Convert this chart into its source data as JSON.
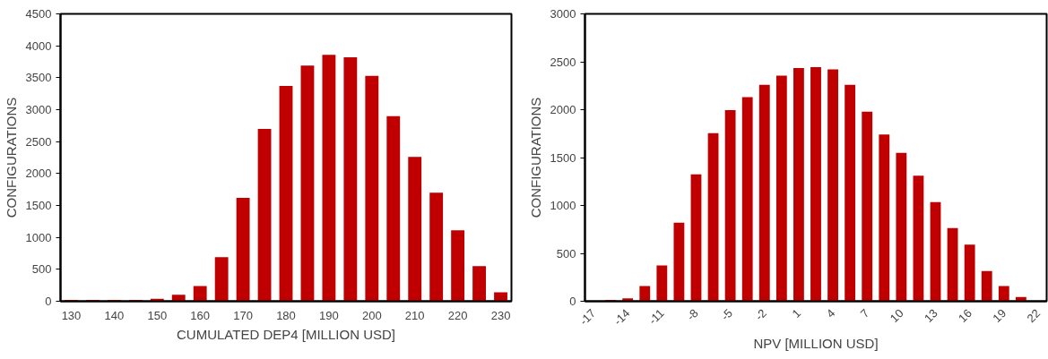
{
  "chart_data": [
    {
      "type": "bar",
      "categories": [
        "130",
        null,
        "140",
        null,
        "150",
        null,
        "160",
        null,
        "170",
        null,
        "180",
        null,
        "190",
        null,
        "200",
        null,
        "210",
        null,
        "220",
        null,
        "230"
      ],
      "values": [
        20,
        20,
        20,
        20,
        40,
        100,
        240,
        690,
        1620,
        2700,
        3370,
        3690,
        3860,
        3820,
        3530,
        2900,
        2260,
        1700,
        1110,
        550,
        140
      ],
      "color": "#c00000",
      "xlabel": "CUMULATED DEP4 [MILLION USD]",
      "ylabel": "CONFIGURATIONS",
      "ylim": [
        0,
        4500
      ],
      "yticks": [
        0,
        500,
        1000,
        1500,
        2000,
        2500,
        3000,
        3500,
        4000,
        4500
      ],
      "grid": false
    },
    {
      "type": "bar",
      "categories": [
        "-17",
        null,
        "-14",
        null,
        "-11",
        null,
        "-8",
        null,
        "-5",
        null,
        "-2",
        null,
        "1",
        null,
        "4",
        null,
        "7",
        null,
        "10",
        null,
        "13",
        null,
        "16",
        null,
        "19",
        null,
        "22"
      ],
      "values": [
        0,
        15,
        30,
        160,
        375,
        820,
        1325,
        1755,
        1995,
        2130,
        2260,
        2355,
        2435,
        2445,
        2420,
        2260,
        1980,
        1740,
        1550,
        1310,
        1035,
        765,
        590,
        315,
        160,
        45,
        0
      ],
      "color": "#c00000",
      "xlabel": "NPV [MILLION USD]",
      "ylabel": "CONFIGURATIONS",
      "ylim": [
        0,
        3000
      ],
      "yticks": [
        0,
        500,
        1000,
        1500,
        2000,
        2500,
        3000
      ],
      "grid": false
    }
  ]
}
